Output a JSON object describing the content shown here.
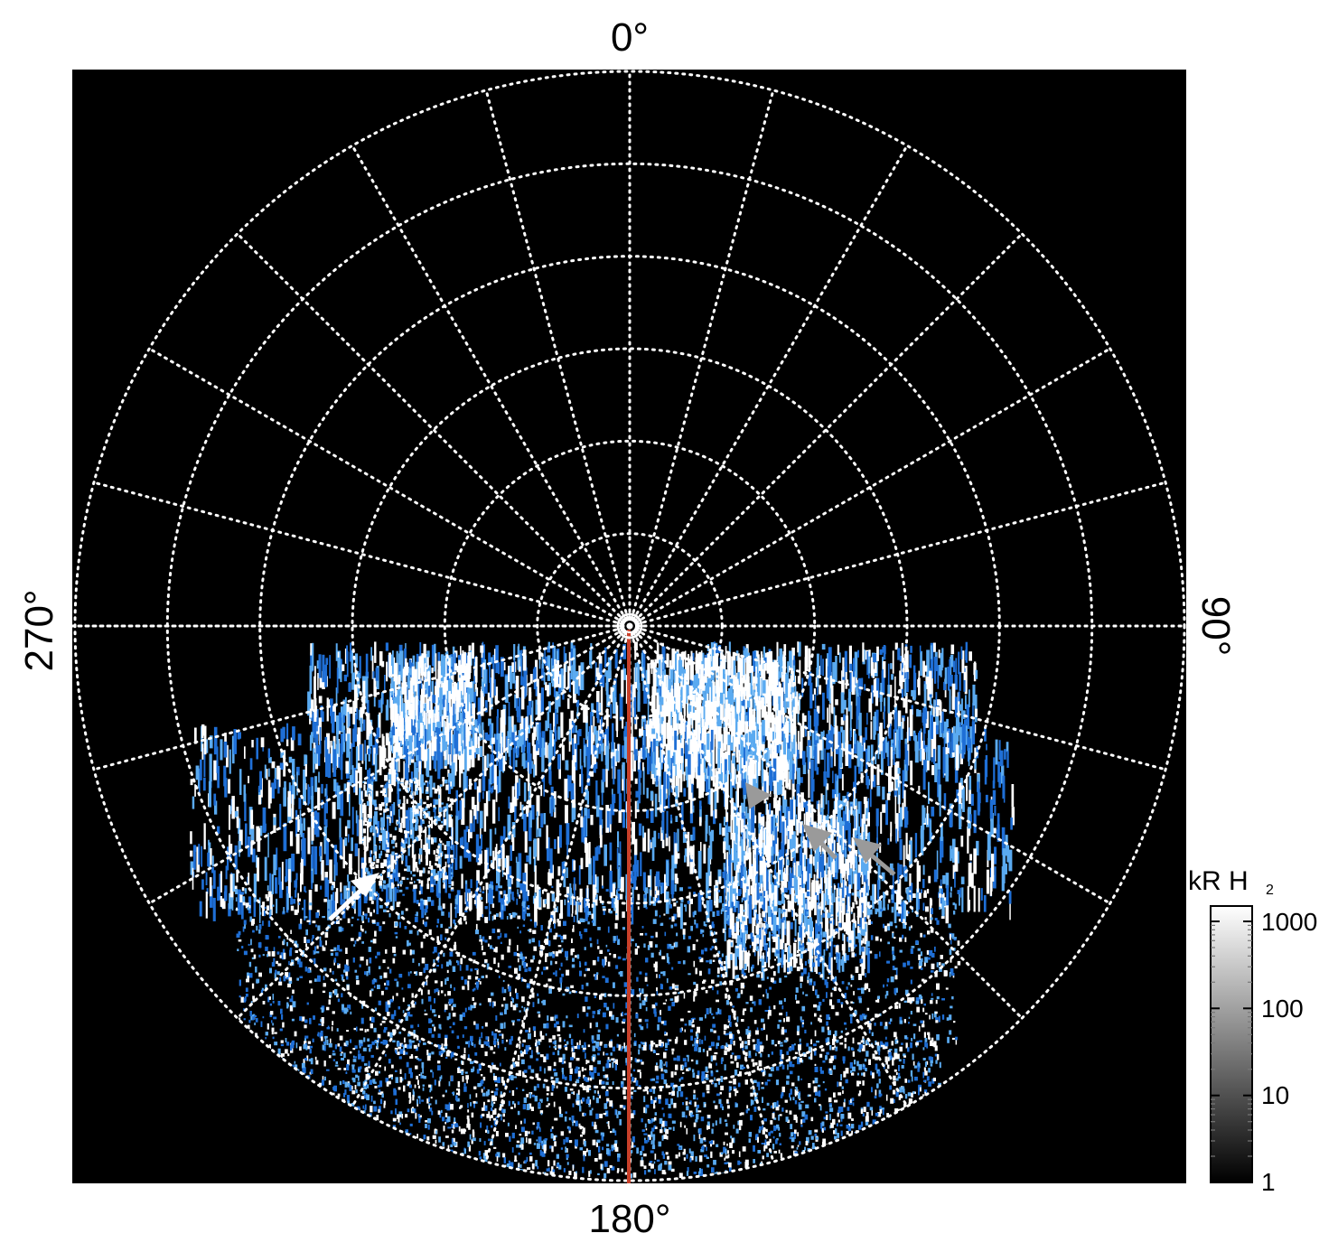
{
  "image": {
    "description_kind": "polar-projection auroral emission map",
    "colors": {
      "background": "#000000",
      "grid": "#ffffff",
      "emission_faint": "#1f6fd6",
      "emission_mid": "#5aaaf0",
      "emission_bright": "#ffffff",
      "meridian_line": "#c8402a",
      "arrow_white": "#ffffff",
      "arrow_grey": "#9a9a9a"
    }
  },
  "axes": {
    "top_label": "0°",
    "right_label": "90°",
    "bottom_label": "180°",
    "left_label": "270°"
  },
  "colorbar": {
    "title_main": "kR H",
    "title_subscript": "2",
    "scale": "log",
    "ticks": [
      "1000",
      "100",
      "10",
      "1"
    ],
    "tick_values": [
      1000,
      100,
      10,
      1
    ],
    "range": [
      1,
      1500
    ],
    "colors": [
      "#000000",
      "#ffffff"
    ]
  },
  "grid": {
    "rings": 6,
    "spokes": 24,
    "style": "dotted"
  },
  "annotations": {
    "arrow_count": 4,
    "arrow_colors": [
      "#ffffff",
      "#9a9a9a",
      "#9a9a9a",
      "#9a9a9a"
    ]
  }
}
